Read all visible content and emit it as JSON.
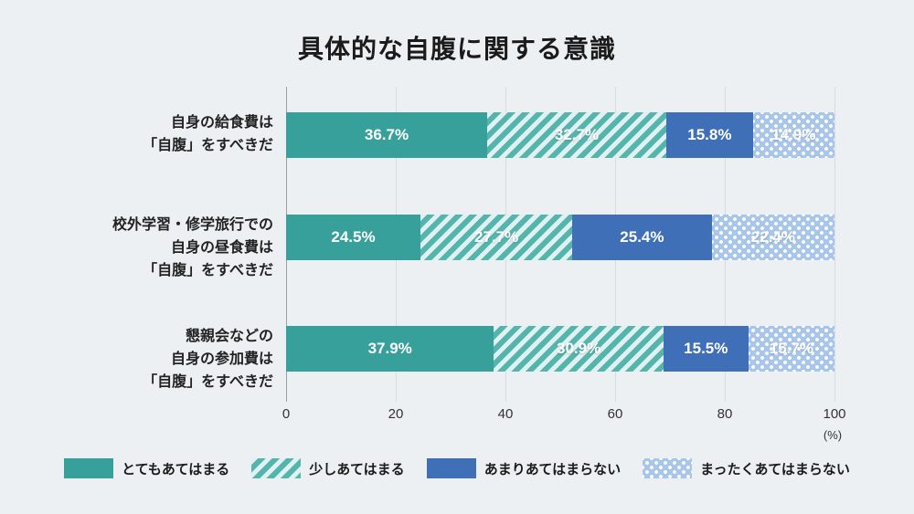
{
  "chart_data": {
    "type": "bar",
    "variant": "horizontal-stacked",
    "title": "具体的な自腹に関する意識",
    "xlim": [
      0,
      100
    ],
    "x_ticks": [
      "0",
      "20",
      "40",
      "60",
      "80",
      "100"
    ],
    "x_unit": "(%)",
    "grid": "vertical-light",
    "legend_position": "bottom",
    "categories": [
      "自身の給食費は「自腹」をすべきだ",
      "校外学習・修学旅行での自身の昼食費は「自腹」をすべきだ",
      "懇親会などの自身の参加費は「自腹」をすべきだ"
    ],
    "series": [
      {
        "name": "とてもあてはまる",
        "pattern": "solid",
        "color": "#38a09b",
        "values": [
          36.7,
          24.5,
          37.9
        ]
      },
      {
        "name": "少しあてはまる",
        "pattern": "diagonal-stripes",
        "color": "#55b5ae",
        "values": [
          32.7,
          27.7,
          30.9
        ]
      },
      {
        "name": "あまりあてはまらない",
        "pattern": "solid",
        "color": "#3e6fb7",
        "values": [
          15.8,
          25.4,
          15.5
        ]
      },
      {
        "name": "まったくあてはまらない",
        "pattern": "dots",
        "color": "#a8c6e9",
        "values": [
          14.9,
          22.4,
          15.7
        ]
      }
    ],
    "rows": [
      {
        "label_lines": [
          "自身の給食費は",
          "「自腹」をすべきだ"
        ],
        "segments": [
          {
            "value": 36.7,
            "label": "36.7%"
          },
          {
            "value": 32.7,
            "label": "32.7%"
          },
          {
            "value": 15.8,
            "label": "15.8%"
          },
          {
            "value": 14.9,
            "label": "14.9%"
          }
        ]
      },
      {
        "label_lines": [
          "校外学習・修学旅行での",
          "自身の昼食費は",
          "「自腹」をすべきだ"
        ],
        "segments": [
          {
            "value": 24.5,
            "label": "24.5%"
          },
          {
            "value": 27.7,
            "label": "27.7%"
          },
          {
            "value": 25.4,
            "label": "25.4%"
          },
          {
            "value": 22.4,
            "label": "22.4%"
          }
        ]
      },
      {
        "label_lines": [
          "懇親会などの",
          "自身の参加費は",
          "「自腹」をすべきだ"
        ],
        "segments": [
          {
            "value": 37.9,
            "label": "37.9%"
          },
          {
            "value": 30.9,
            "label": "30.9%"
          },
          {
            "value": 15.5,
            "label": "15.5%"
          },
          {
            "value": 15.7,
            "label": "15.7%"
          }
        ]
      }
    ],
    "colors": {
      "background": "#ecf0f2",
      "bar_text": "#ffffff",
      "axis_text": "#333333"
    }
  }
}
